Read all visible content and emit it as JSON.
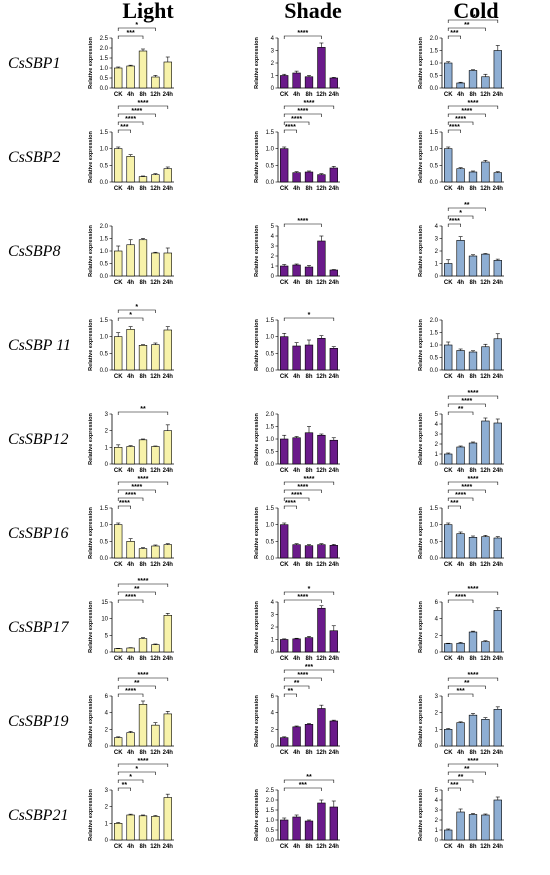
{
  "column_titles": [
    "Light",
    "Shade",
    "Cold"
  ],
  "genes": [
    "CsSBP1",
    "CsSBP2",
    "CsSBP8",
    "CsSBP 11",
    "CsSBP12",
    "CsSBP16",
    "CsSBP17",
    "CsSBP19",
    "CsSBP21"
  ],
  "colors": {
    "Light": "#f7f2aa",
    "Shade": "#6a1a8a",
    "Cold": "#8eaed3"
  },
  "chart_data": [
    {
      "gene": "CsSBP1",
      "condition": "Light",
      "type": "bar",
      "categories": [
        "CK",
        "4h",
        "8h",
        "12h",
        "24h"
      ],
      "values": [
        1.0,
        1.1,
        1.85,
        0.55,
        1.3
      ],
      "errors": [
        0.05,
        0.04,
        0.1,
        0.08,
        0.25
      ],
      "ylabel": "Relative expression",
      "ylim": [
        0,
        2.5
      ],
      "yticks": [
        0,
        0.5,
        1.0,
        1.5,
        2.0,
        2.5
      ],
      "sig": [
        {
          "i": 2,
          "label": "***"
        },
        {
          "i": 3,
          "label": "*"
        }
      ]
    },
    {
      "gene": "CsSBP1",
      "condition": "Shade",
      "type": "bar",
      "categories": [
        "CK",
        "4h",
        "8h",
        "12h",
        "24h"
      ],
      "values": [
        1.0,
        1.2,
        0.9,
        3.25,
        0.8
      ],
      "errors": [
        0.1,
        0.15,
        0.1,
        0.35,
        0.05
      ],
      "ylabel": "Relative expression",
      "ylim": [
        0,
        4
      ],
      "yticks": [
        0,
        1,
        2,
        3,
        4
      ],
      "sig": [
        {
          "i": 3,
          "label": "****"
        }
      ]
    },
    {
      "gene": "CsSBP1",
      "condition": "Cold",
      "type": "bar",
      "categories": [
        "CK",
        "4h",
        "8h",
        "12h",
        "24h"
      ],
      "values": [
        1.0,
        0.2,
        0.7,
        0.45,
        1.5
      ],
      "errors": [
        0.05,
        0.03,
        0.03,
        0.1,
        0.2
      ],
      "ylabel": "Relative expression",
      "ylim": [
        0,
        2.0
      ],
      "yticks": [
        0,
        0.5,
        1.0,
        1.5,
        2.0
      ],
      "sig": [
        {
          "i": 1,
          "label": "***"
        },
        {
          "i": 3,
          "label": "**"
        },
        {
          "i": 4,
          "label": "**"
        }
      ]
    },
    {
      "gene": "CsSBP2",
      "condition": "Light",
      "type": "bar",
      "categories": [
        "CK",
        "4h",
        "8h",
        "12h",
        "24h"
      ],
      "values": [
        1.0,
        0.77,
        0.16,
        0.22,
        0.4
      ],
      "errors": [
        0.05,
        0.05,
        0.02,
        0.03,
        0.05
      ],
      "ylabel": "Relative expression",
      "ylim": [
        0,
        1.5
      ],
      "yticks": [
        0,
        0.5,
        1.0,
        1.5
      ],
      "sig": [
        {
          "i": 1,
          "label": "***"
        },
        {
          "i": 2,
          "label": "****"
        },
        {
          "i": 3,
          "label": "****"
        },
        {
          "i": 4,
          "label": "****"
        }
      ]
    },
    {
      "gene": "CsSBP2",
      "condition": "Shade",
      "type": "bar",
      "categories": [
        "CK",
        "4h",
        "8h",
        "12h",
        "24h"
      ],
      "values": [
        1.0,
        0.28,
        0.3,
        0.22,
        0.42
      ],
      "errors": [
        0.05,
        0.03,
        0.03,
        0.03,
        0.05
      ],
      "ylabel": "Relative expression",
      "ylim": [
        0,
        1.5
      ],
      "yticks": [
        0,
        0.5,
        1.0,
        1.5
      ],
      "sig": [
        {
          "i": 1,
          "label": "****"
        },
        {
          "i": 2,
          "label": "****"
        },
        {
          "i": 3,
          "label": "****"
        },
        {
          "i": 4,
          "label": "****"
        }
      ]
    },
    {
      "gene": "CsSBP2",
      "condition": "Cold",
      "type": "bar",
      "categories": [
        "CK",
        "4h",
        "8h",
        "12h",
        "24h"
      ],
      "values": [
        1.0,
        0.4,
        0.3,
        0.6,
        0.28
      ],
      "errors": [
        0.05,
        0.03,
        0.03,
        0.05,
        0.03
      ],
      "ylabel": "Relative expression",
      "ylim": [
        0,
        1.5
      ],
      "yticks": [
        0,
        0.5,
        1.0,
        1.5
      ],
      "sig": [
        {
          "i": 1,
          "label": "****"
        },
        {
          "i": 2,
          "label": "****"
        },
        {
          "i": 3,
          "label": "****"
        },
        {
          "i": 4,
          "label": "****"
        }
      ]
    },
    {
      "gene": "CsSBP8",
      "condition": "Light",
      "type": "bar",
      "categories": [
        "CK",
        "4h",
        "8h",
        "12h",
        "24h"
      ],
      "values": [
        1.0,
        1.25,
        1.45,
        0.92,
        0.92
      ],
      "errors": [
        0.2,
        0.2,
        0.05,
        0.03,
        0.2
      ],
      "ylabel": "Relative expression",
      "ylim": [
        0,
        2.0
      ],
      "yticks": [
        0,
        0.5,
        1.0,
        1.5,
        2.0
      ],
      "sig": []
    },
    {
      "gene": "CsSBP8",
      "condition": "Shade",
      "type": "bar",
      "categories": [
        "CK",
        "4h",
        "8h",
        "12h",
        "24h"
      ],
      "values": [
        1.0,
        1.1,
        0.9,
        3.5,
        0.6
      ],
      "errors": [
        0.15,
        0.1,
        0.15,
        0.5,
        0.05
      ],
      "ylabel": "Relative expression",
      "ylim": [
        0,
        5
      ],
      "yticks": [
        0,
        1,
        2,
        3,
        4,
        5
      ],
      "sig": [
        {
          "i": 3,
          "label": "****"
        }
      ]
    },
    {
      "gene": "CsSBP8",
      "condition": "Cold",
      "type": "bar",
      "categories": [
        "CK",
        "4h",
        "8h",
        "12h",
        "24h"
      ],
      "values": [
        1.0,
        2.85,
        1.6,
        1.75,
        1.25
      ],
      "errors": [
        0.3,
        0.3,
        0.1,
        0.05,
        0.1
      ],
      "ylabel": "Relative expression",
      "ylim": [
        0,
        4
      ],
      "yticks": [
        0,
        1,
        2,
        3,
        4
      ],
      "sig": [
        {
          "i": 1,
          "label": "****"
        },
        {
          "i": 2,
          "label": "*"
        },
        {
          "i": 3,
          "label": "**"
        }
      ]
    },
    {
      "gene": "CsSBP 11",
      "condition": "Light",
      "type": "bar",
      "categories": [
        "CK",
        "4h",
        "8h",
        "12h",
        "24h"
      ],
      "values": [
        1.0,
        1.22,
        0.74,
        0.76,
        1.2
      ],
      "errors": [
        0.12,
        0.08,
        0.02,
        0.05,
        0.1
      ],
      "ylabel": "Relative expression",
      "ylim": [
        0,
        1.5
      ],
      "yticks": [
        0,
        0.5,
        1.0,
        1.5
      ],
      "sig": [
        {
          "i": 2,
          "label": "*"
        },
        {
          "i": 3,
          "label": "*"
        }
      ]
    },
    {
      "gene": "CsSBP 11",
      "condition": "Shade",
      "type": "bar",
      "categories": [
        "CK",
        "4h",
        "8h",
        "12h",
        "24h"
      ],
      "values": [
        1.0,
        0.72,
        0.75,
        0.95,
        0.65
      ],
      "errors": [
        0.1,
        0.1,
        0.15,
        0.08,
        0.05
      ],
      "ylabel": "Relative expression",
      "ylim": [
        0,
        1.5
      ],
      "yticks": [
        0,
        0.5,
        1.0,
        1.5
      ],
      "sig": [
        {
          "i": 4,
          "label": "*"
        }
      ]
    },
    {
      "gene": "CsSBP 11",
      "condition": "Cold",
      "type": "bar",
      "categories": [
        "CK",
        "4h",
        "8h",
        "12h",
        "24h"
      ],
      "values": [
        1.0,
        0.78,
        0.72,
        0.93,
        1.25
      ],
      "errors": [
        0.12,
        0.06,
        0.05,
        0.1,
        0.2
      ],
      "ylabel": "Relative expression",
      "ylim": [
        0,
        2.0
      ],
      "yticks": [
        0,
        0.5,
        1.0,
        1.5,
        2.0
      ],
      "sig": []
    },
    {
      "gene": "CsSBP12",
      "condition": "Light",
      "type": "bar",
      "categories": [
        "CK",
        "4h",
        "8h",
        "12h",
        "24h"
      ],
      "values": [
        1.0,
        1.05,
        1.45,
        1.05,
        2.0
      ],
      "errors": [
        0.15,
        0.05,
        0.05,
        0.03,
        0.35
      ],
      "ylabel": "Relative expression",
      "ylim": [
        0,
        3
      ],
      "yticks": [
        0,
        1,
        2,
        3
      ],
      "sig": [
        {
          "i": 4,
          "label": "**"
        }
      ]
    },
    {
      "gene": "CsSBP12",
      "condition": "Shade",
      "type": "bar",
      "categories": [
        "CK",
        "4h",
        "8h",
        "12h",
        "24h"
      ],
      "values": [
        1.0,
        1.05,
        1.25,
        1.15,
        0.95
      ],
      "errors": [
        0.15,
        0.05,
        0.25,
        0.05,
        0.1
      ],
      "ylabel": "Relative expression",
      "ylim": [
        0,
        2.0
      ],
      "yticks": [
        0,
        0.5,
        1.0,
        1.5,
        2.0
      ],
      "sig": []
    },
    {
      "gene": "CsSBP12",
      "condition": "Cold",
      "type": "bar",
      "categories": [
        "CK",
        "4h",
        "8h",
        "12h",
        "24h"
      ],
      "values": [
        1.0,
        1.7,
        2.1,
        4.3,
        4.1
      ],
      "errors": [
        0.1,
        0.1,
        0.1,
        0.3,
        0.4
      ],
      "ylabel": "Relative expression",
      "ylim": [
        0,
        5
      ],
      "yticks": [
        0,
        1,
        2,
        3,
        4,
        5
      ],
      "sig": [
        {
          "i": 2,
          "label": "**"
        },
        {
          "i": 3,
          "label": "****"
        },
        {
          "i": 4,
          "label": "****"
        }
      ]
    },
    {
      "gene": "CsSBP16",
      "condition": "Light",
      "type": "bar",
      "categories": [
        "CK",
        "4h",
        "8h",
        "12h",
        "24h"
      ],
      "values": [
        1.0,
        0.5,
        0.28,
        0.36,
        0.4
      ],
      "errors": [
        0.05,
        0.08,
        0.03,
        0.03,
        0.03
      ],
      "ylabel": "Relative expression",
      "ylim": [
        0,
        1.5
      ],
      "yticks": [
        0,
        0.5,
        1.0,
        1.5
      ],
      "sig": [
        {
          "i": 1,
          "label": "****"
        },
        {
          "i": 2,
          "label": "****"
        },
        {
          "i": 3,
          "label": "****"
        },
        {
          "i": 4,
          "label": "****"
        }
      ]
    },
    {
      "gene": "CsSBP16",
      "condition": "Shade",
      "type": "bar",
      "categories": [
        "CK",
        "4h",
        "8h",
        "12h",
        "24h"
      ],
      "values": [
        1.0,
        0.4,
        0.37,
        0.4,
        0.38
      ],
      "errors": [
        0.05,
        0.03,
        0.03,
        0.03,
        0.03
      ],
      "ylabel": "Relative expression",
      "ylim": [
        0,
        1.5
      ],
      "yticks": [
        0,
        0.5,
        1.0,
        1.5
      ],
      "sig": [
        {
          "i": 1,
          "label": "****"
        },
        {
          "i": 2,
          "label": "****"
        },
        {
          "i": 3,
          "label": "****"
        },
        {
          "i": 4,
          "label": "****"
        }
      ]
    },
    {
      "gene": "CsSBP16",
      "condition": "Cold",
      "type": "bar",
      "categories": [
        "CK",
        "4h",
        "8h",
        "12h",
        "24h"
      ],
      "values": [
        1.0,
        0.73,
        0.62,
        0.64,
        0.6
      ],
      "errors": [
        0.05,
        0.05,
        0.04,
        0.04,
        0.04
      ],
      "ylabel": "Relative expression",
      "ylim": [
        0,
        1.5
      ],
      "yticks": [
        0,
        0.5,
        1.0,
        1.5
      ],
      "sig": [
        {
          "i": 1,
          "label": "***"
        },
        {
          "i": 2,
          "label": "****"
        },
        {
          "i": 3,
          "label": "****"
        },
        {
          "i": 4,
          "label": "****"
        }
      ]
    },
    {
      "gene": "CsSBP17",
      "condition": "Light",
      "type": "bar",
      "categories": [
        "CK",
        "4h",
        "8h",
        "12h",
        "24h"
      ],
      "values": [
        1.0,
        1.2,
        4.0,
        2.2,
        11.0
      ],
      "errors": [
        0.1,
        0.1,
        0.3,
        0.2,
        0.6
      ],
      "ylabel": "Relative expression",
      "ylim": [
        0,
        15
      ],
      "yticks": [
        0,
        5,
        10,
        15
      ],
      "sig": [
        {
          "i": 2,
          "label": "****"
        },
        {
          "i": 3,
          "label": "**"
        },
        {
          "i": 4,
          "label": "****"
        }
      ]
    },
    {
      "gene": "CsSBP17",
      "condition": "Shade",
      "type": "bar",
      "categories": [
        "CK",
        "4h",
        "8h",
        "12h",
        "24h"
      ],
      "values": [
        1.0,
        1.05,
        1.15,
        3.5,
        1.7
      ],
      "errors": [
        0.05,
        0.05,
        0.1,
        0.2,
        0.4
      ],
      "ylabel": "Relative expression",
      "ylim": [
        0,
        4
      ],
      "yticks": [
        0,
        1,
        2,
        3,
        4
      ],
      "sig": [
        {
          "i": 3,
          "label": "****"
        },
        {
          "i": 4,
          "label": "*"
        }
      ]
    },
    {
      "gene": "CsSBP17",
      "condition": "Cold",
      "type": "bar",
      "categories": [
        "CK",
        "4h",
        "8h",
        "12h",
        "24h"
      ],
      "values": [
        1.0,
        1.05,
        2.4,
        1.25,
        5.0
      ],
      "errors": [
        0.05,
        0.1,
        0.1,
        0.1,
        0.3
      ],
      "ylabel": "Relative expression",
      "ylim": [
        0,
        6
      ],
      "yticks": [
        0,
        2,
        4,
        6
      ],
      "sig": [
        {
          "i": 2,
          "label": "****"
        },
        {
          "i": 4,
          "label": "****"
        }
      ]
    },
    {
      "gene": "CsSBP19",
      "condition": "Light",
      "type": "bar",
      "categories": [
        "CK",
        "4h",
        "8h",
        "12h",
        "24h"
      ],
      "values": [
        1.0,
        1.6,
        5.0,
        2.5,
        3.85
      ],
      "errors": [
        0.1,
        0.15,
        0.4,
        0.3,
        0.3
      ],
      "ylabel": "Relative expression",
      "ylim": [
        0,
        6
      ],
      "yticks": [
        0,
        2,
        4,
        6
      ],
      "sig": [
        {
          "i": 2,
          "label": "****"
        },
        {
          "i": 3,
          "label": "**"
        },
        {
          "i": 4,
          "label": "****"
        }
      ]
    },
    {
      "gene": "CsSBP19",
      "condition": "Shade",
      "type": "bar",
      "categories": [
        "CK",
        "4h",
        "8h",
        "12h",
        "24h"
      ],
      "values": [
        1.0,
        2.3,
        2.6,
        4.5,
        3.0
      ],
      "errors": [
        0.1,
        0.1,
        0.1,
        0.4,
        0.1
      ],
      "ylabel": "Relative expression",
      "ylim": [
        0,
        6
      ],
      "yticks": [
        0,
        2,
        4,
        6
      ],
      "sig": [
        {
          "i": 1,
          "label": "**"
        },
        {
          "i": 2,
          "label": "**"
        },
        {
          "i": 3,
          "label": "****"
        },
        {
          "i": 4,
          "label": "***"
        }
      ]
    },
    {
      "gene": "CsSBP19",
      "condition": "Cold",
      "type": "bar",
      "categories": [
        "CK",
        "4h",
        "8h",
        "12h",
        "24h"
      ],
      "values": [
        1.0,
        1.4,
        1.85,
        1.6,
        2.2
      ],
      "errors": [
        0.05,
        0.05,
        0.1,
        0.1,
        0.15
      ],
      "ylabel": "Relative expression",
      "ylim": [
        0,
        3
      ],
      "yticks": [
        0,
        1,
        2,
        3
      ],
      "sig": [
        {
          "i": 2,
          "label": "***"
        },
        {
          "i": 3,
          "label": "**"
        },
        {
          "i": 4,
          "label": "****"
        }
      ]
    },
    {
      "gene": "CsSBP21",
      "condition": "Light",
      "type": "bar",
      "categories": [
        "CK",
        "4h",
        "8h",
        "12h",
        "24h"
      ],
      "values": [
        1.0,
        1.5,
        1.45,
        1.42,
        2.55
      ],
      "errors": [
        0.05,
        0.05,
        0.05,
        0.05,
        0.2
      ],
      "ylabel": "Relative expression",
      "ylim": [
        0,
        3
      ],
      "yticks": [
        0,
        1,
        2,
        3
      ],
      "sig": [
        {
          "i": 1,
          "label": "**"
        },
        {
          "i": 2,
          "label": "*"
        },
        {
          "i": 3,
          "label": "*"
        },
        {
          "i": 4,
          "label": "****"
        }
      ]
    },
    {
      "gene": "CsSBP21",
      "condition": "Shade",
      "type": "bar",
      "categories": [
        "CK",
        "4h",
        "8h",
        "12h",
        "24h"
      ],
      "values": [
        1.0,
        1.15,
        0.95,
        1.85,
        1.65
      ],
      "errors": [
        0.1,
        0.1,
        0.05,
        0.15,
        0.3
      ],
      "ylabel": "Relative expression",
      "ylim": [
        0,
        2.5
      ],
      "yticks": [
        0,
        0.5,
        1.0,
        1.5,
        2.0,
        2.5
      ],
      "sig": [
        {
          "i": 3,
          "label": "***"
        },
        {
          "i": 4,
          "label": "**"
        }
      ]
    },
    {
      "gene": "CsSBP21",
      "condition": "Cold",
      "type": "bar",
      "categories": [
        "CK",
        "4h",
        "8h",
        "12h",
        "24h"
      ],
      "values": [
        1.0,
        2.8,
        2.55,
        2.5,
        4.0
      ],
      "errors": [
        0.1,
        0.3,
        0.1,
        0.1,
        0.3
      ],
      "ylabel": "Relative expression",
      "ylim": [
        0,
        5
      ],
      "yticks": [
        0,
        1,
        2,
        3,
        4,
        5
      ],
      "sig": [
        {
          "i": 1,
          "label": "***"
        },
        {
          "i": 2,
          "label": "**"
        },
        {
          "i": 3,
          "label": "**"
        },
        {
          "i": 4,
          "label": "****"
        }
      ]
    }
  ]
}
